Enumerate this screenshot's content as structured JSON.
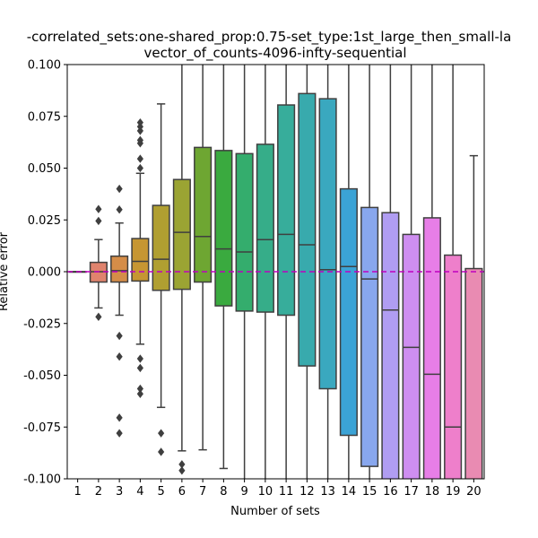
{
  "chart_data": {
    "type": "box",
    "title_line1": "-correlated_sets:one-shared_prop:0.75-set_type:1st_large_then_small-la",
    "title_line2": "vector_of_counts-4096-infty-sequential",
    "xlabel": "Number of sets",
    "ylabel": "Relative error",
    "ylim": [
      -0.1,
      0.1
    ],
    "yticks": [
      "-0.100",
      "-0.075",
      "-0.050",
      "-0.025",
      "0.000",
      "0.025",
      "0.050",
      "0.075",
      "0.100"
    ],
    "reference_line": {
      "y": 0.0,
      "color": "#bf00bf",
      "style": "dashed"
    },
    "categories": [
      "1",
      "2",
      "3",
      "4",
      "5",
      "6",
      "7",
      "8",
      "9",
      "10",
      "11",
      "12",
      "13",
      "14",
      "15",
      "16",
      "17",
      "18",
      "19",
      "20"
    ],
    "boxes": [
      {
        "x": "1",
        "q1": 0.0,
        "median": 0.0,
        "q3": 0.0,
        "whislo": 0.0,
        "whishi": 0.0,
        "fliers": [],
        "color": "#e8827c"
      },
      {
        "x": "2",
        "q1": -0.005,
        "median": 0.0,
        "q3": 0.0045,
        "whislo": -0.0175,
        "whishi": 0.0155,
        "fliers": [
          0.0245,
          0.0302,
          -0.0218
        ],
        "color": "#e0836d"
      },
      {
        "x": "3",
        "q1": -0.005,
        "median": 0.0005,
        "q3": 0.0075,
        "whislo": -0.021,
        "whishi": 0.0235,
        "fliers": [
          0.03,
          0.04,
          -0.031,
          -0.041,
          -0.0705,
          -0.078
        ],
        "color": "#d58d48"
      },
      {
        "x": "4",
        "q1": -0.0045,
        "median": 0.005,
        "q3": 0.016,
        "whislo": -0.035,
        "whishi": 0.0475,
        "fliers": [
          0.05,
          0.0545,
          0.062,
          0.0635,
          0.068,
          0.07,
          0.072,
          -0.042,
          -0.0465,
          -0.0565,
          -0.059
        ],
        "color": "#c69632"
      },
      {
        "x": "5",
        "q1": -0.009,
        "median": 0.006,
        "q3": 0.032,
        "whislo": -0.0655,
        "whishi": 0.081,
        "fliers": [
          -0.078,
          -0.087
        ],
        "color": "#b09f31"
      },
      {
        "x": "6",
        "q1": -0.0085,
        "median": 0.019,
        "q3": 0.0445,
        "whislo": -0.0865,
        "whishi": 0.11,
        "fliers": [
          -0.093,
          -0.096
        ],
        "color": "#9ba433"
      },
      {
        "x": "7",
        "q1": -0.005,
        "median": 0.017,
        "q3": 0.06,
        "whislo": -0.086,
        "whishi": 0.11,
        "fliers": [],
        "color": "#6ea632"
      },
      {
        "x": "8",
        "q1": -0.0165,
        "median": 0.011,
        "q3": 0.0585,
        "whislo": -0.095,
        "whishi": 0.11,
        "fliers": [],
        "color": "#3aaa3f"
      },
      {
        "x": "9",
        "q1": -0.019,
        "median": 0.0095,
        "q3": 0.057,
        "whislo": -0.11,
        "whishi": 0.11,
        "fliers": [],
        "color": "#34ad6d"
      },
      {
        "x": "10",
        "q1": -0.0195,
        "median": 0.0155,
        "q3": 0.0615,
        "whislo": -0.11,
        "whishi": 0.11,
        "fliers": [],
        "color": "#36ad89"
      },
      {
        "x": "11",
        "q1": -0.021,
        "median": 0.018,
        "q3": 0.0805,
        "whislo": -0.11,
        "whishi": 0.11,
        "fliers": [],
        "color": "#37ad9b"
      },
      {
        "x": "12",
        "q1": -0.0455,
        "median": 0.013,
        "q3": 0.086,
        "whislo": -0.11,
        "whishi": 0.11,
        "fliers": [],
        "color": "#38aaad"
      },
      {
        "x": "13",
        "q1": -0.0565,
        "median": 0.001,
        "q3": 0.0835,
        "whislo": -0.11,
        "whishi": 0.11,
        "fliers": [],
        "color": "#3aa8bf"
      },
      {
        "x": "14",
        "q1": -0.079,
        "median": 0.0025,
        "q3": 0.04,
        "whislo": -0.11,
        "whishi": 0.11,
        "fliers": [],
        "color": "#3ba3d6"
      },
      {
        "x": "15",
        "q1": -0.094,
        "median": -0.0035,
        "q3": 0.031,
        "whislo": -0.11,
        "whishi": 0.11,
        "fliers": [],
        "color": "#88a7ee"
      },
      {
        "x": "16",
        "q1": -0.11,
        "median": -0.0185,
        "q3": 0.0285,
        "whislo": -0.11,
        "whishi": 0.11,
        "fliers": [],
        "color": "#b09df2"
      },
      {
        "x": "17",
        "q1": -0.11,
        "median": -0.0365,
        "q3": 0.018,
        "whislo": -0.11,
        "whishi": 0.11,
        "fliers": [],
        "color": "#ce8ef0"
      },
      {
        "x": "18",
        "q1": -0.11,
        "median": -0.0495,
        "q3": 0.026,
        "whislo": -0.11,
        "whishi": 0.11,
        "fliers": [],
        "color": "#e77ee7"
      },
      {
        "x": "19",
        "q1": -0.11,
        "median": -0.075,
        "q3": 0.008,
        "whislo": -0.11,
        "whishi": 0.11,
        "fliers": [],
        "color": "#ee7fcb"
      },
      {
        "x": "20",
        "q1": -0.11,
        "median": -0.11,
        "q3": 0.0015,
        "whislo": -0.11,
        "whishi": 0.056,
        "fliers": [],
        "color": "#e98bb2"
      }
    ]
  }
}
